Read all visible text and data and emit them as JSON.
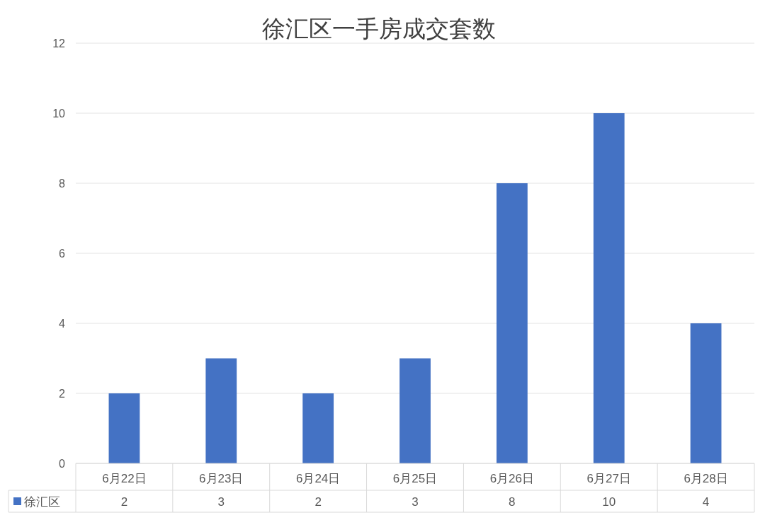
{
  "chart_data": {
    "type": "bar",
    "title": "徐汇区一手房成交套数",
    "categories": [
      "6月22日",
      "6月23日",
      "6月24日",
      "6月25日",
      "6月26日",
      "6月27日",
      "6月28日"
    ],
    "series": [
      {
        "name": "徐汇区",
        "color": "#4472c4",
        "values": [
          2,
          3,
          2,
          3,
          8,
          10,
          4
        ]
      }
    ],
    "ylim": [
      0,
      12
    ],
    "yticks": [
      0,
      2,
      4,
      6,
      8,
      10,
      12
    ],
    "grid": "y",
    "data_labels": true,
    "legend": "bottom"
  }
}
